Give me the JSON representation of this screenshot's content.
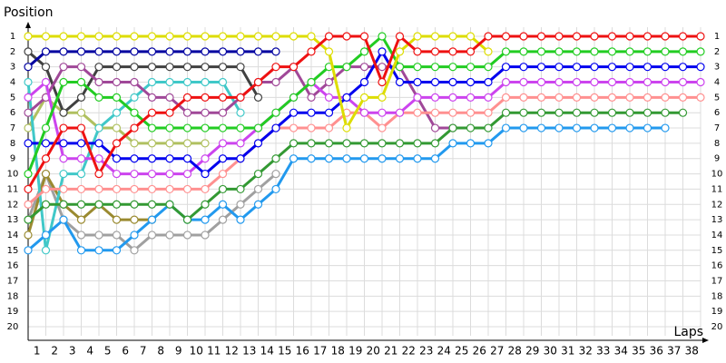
{
  "chart_data": {
    "type": "line",
    "y_label": "Position",
    "x_label": "Laps",
    "x": [
      0,
      1,
      2,
      3,
      4,
      5,
      6,
      7,
      8,
      9,
      10,
      11,
      12,
      13,
      14,
      15,
      16,
      17,
      18,
      19,
      20,
      21,
      22,
      23,
      24,
      25,
      26,
      27,
      28,
      29,
      30,
      31,
      32,
      33,
      34,
      35,
      36,
      37,
      38
    ],
    "xlim": [
      0,
      38
    ],
    "ylim": [
      1,
      20
    ],
    "y_inverted": true,
    "grid": true,
    "xticks": [
      1,
      2,
      3,
      4,
      5,
      6,
      7,
      8,
      9,
      10,
      11,
      12,
      13,
      14,
      15,
      16,
      17,
      18,
      19,
      20,
      21,
      22,
      23,
      24,
      25,
      26,
      27,
      28,
      29,
      30,
      31,
      32,
      33,
      34,
      35,
      36,
      37,
      38
    ],
    "yticks": [
      1,
      2,
      3,
      4,
      5,
      6,
      7,
      8,
      9,
      10,
      11,
      12,
      13,
      14,
      15,
      16,
      17,
      18,
      19,
      20
    ],
    "series": [
      {
        "color": "#a0a0a0",
        "values": [
          13,
          10,
          13,
          14,
          14,
          14,
          15,
          14,
          14,
          14,
          14,
          13,
          12,
          11,
          10,
          null,
          null,
          null,
          null,
          null,
          null,
          null,
          null,
          null,
          null,
          null,
          null,
          null,
          null,
          null,
          null,
          null,
          null,
          null,
          null,
          null,
          null,
          null,
          null
        ]
      },
      {
        "color": "#9a8a30",
        "values": [
          14,
          10,
          12,
          13,
          12,
          13,
          13,
          13,
          null,
          null,
          null,
          null,
          null,
          null,
          null,
          null,
          null,
          null,
          null,
          null,
          null,
          null,
          null,
          null,
          null,
          null,
          null,
          null,
          null,
          null,
          null,
          null,
          null,
          null,
          null,
          null,
          null,
          null,
          null
        ]
      },
      {
        "color": "#b0c060",
        "values": [
          7,
          5,
          6,
          6,
          7,
          7,
          8,
          8,
          8,
          8,
          8,
          null,
          null,
          null,
          null,
          null,
          null,
          null,
          null,
          null,
          null,
          null,
          null,
          null,
          null,
          null,
          null,
          null,
          null,
          null,
          null,
          null,
          null,
          null,
          null,
          null,
          null,
          null,
          null
        ]
      },
      {
        "color": "#40c8c8",
        "values": [
          4,
          15,
          10,
          10,
          7,
          6,
          5,
          4,
          4,
          4,
          4,
          4,
          6,
          null,
          null,
          null,
          null,
          null,
          null,
          null,
          null,
          null,
          null,
          null,
          null,
          null,
          null,
          null,
          null,
          null,
          null,
          null,
          null,
          null,
          null,
          null,
          null,
          null,
          null
        ]
      },
      {
        "color": "#404040",
        "values": [
          2,
          3,
          6,
          5,
          3,
          3,
          3,
          3,
          3,
          3,
          3,
          3,
          3,
          5,
          null,
          null,
          null,
          null,
          null,
          null,
          null,
          null,
          null,
          null,
          null,
          null,
          null,
          null,
          null,
          null,
          null,
          null,
          null,
          null,
          null,
          null,
          null,
          null,
          null
        ]
      },
      {
        "color": "#0000a0",
        "values": [
          3,
          2,
          2,
          2,
          2,
          2,
          2,
          2,
          2,
          2,
          2,
          2,
          2,
          2,
          2,
          null,
          null,
          null,
          null,
          null,
          null,
          null,
          null,
          null,
          null,
          null,
          null,
          null,
          null,
          null,
          null,
          null,
          null,
          null,
          null,
          null,
          null,
          null,
          null
        ]
      },
      {
        "color": "#a04898",
        "values": [
          6,
          5,
          3,
          3,
          4,
          4,
          4,
          5,
          5,
          6,
          6,
          6,
          5,
          4,
          4,
          3,
          5,
          4,
          3,
          3,
          3,
          3,
          5,
          7,
          7,
          null,
          null,
          null,
          null,
          null,
          null,
          null,
          null,
          null,
          null,
          null,
          null,
          null,
          null
        ]
      },
      {
        "color": "#2299ee",
        "values": [
          15,
          14,
          13,
          15,
          15,
          15,
          14,
          13,
          12,
          13,
          13,
          12,
          13,
          12,
          11,
          9,
          9,
          9,
          9,
          9,
          9,
          9,
          9,
          9,
          8,
          8,
          8,
          7,
          7,
          7,
          7,
          7,
          7,
          7,
          7,
          7,
          7,
          null,
          null
        ]
      },
      {
        "color": "#339933",
        "values": [
          13,
          12,
          12,
          12,
          12,
          12,
          12,
          12,
          12,
          13,
          12,
          11,
          11,
          10,
          9,
          8,
          8,
          8,
          8,
          8,
          8,
          8,
          8,
          8,
          7,
          7,
          7,
          6,
          6,
          6,
          6,
          6,
          6,
          6,
          6,
          6,
          6,
          6,
          null
        ]
      },
      {
        "color": "#ff9090",
        "values": [
          12,
          11,
          11,
          11,
          11,
          11,
          11,
          11,
          11,
          11,
          11,
          10,
          9,
          8,
          7,
          7,
          7,
          7,
          6,
          6,
          7,
          6,
          6,
          6,
          6,
          6,
          6,
          5,
          5,
          5,
          5,
          5,
          5,
          5,
          5,
          5,
          5,
          5,
          5
        ]
      },
      {
        "color": "#cc44ee",
        "values": [
          5,
          4,
          9,
          9,
          9,
          10,
          10,
          10,
          10,
          10,
          9,
          8,
          8,
          7,
          6,
          5,
          4,
          5,
          5,
          6,
          6,
          6,
          5,
          5,
          5,
          5,
          5,
          4,
          4,
          4,
          4,
          4,
          4,
          4,
          4,
          4,
          4,
          4,
          4
        ]
      },
      {
        "color": "#0000ee",
        "values": [
          8,
          8,
          8,
          8,
          8,
          9,
          9,
          9,
          9,
          9,
          10,
          9,
          9,
          8,
          7,
          6,
          6,
          6,
          5,
          4,
          2,
          4,
          4,
          4,
          4,
          4,
          4,
          3,
          3,
          3,
          3,
          3,
          3,
          3,
          3,
          3,
          3,
          3,
          3
        ]
      },
      {
        "color": "#22cc22",
        "values": [
          10,
          7,
          4,
          4,
          5,
          5,
          6,
          7,
          7,
          7,
          7,
          7,
          7,
          7,
          6,
          5,
          4,
          3,
          3,
          2,
          1,
          3,
          3,
          3,
          3,
          3,
          3,
          2,
          2,
          2,
          2,
          2,
          2,
          2,
          2,
          2,
          2,
          2,
          2
        ]
      },
      {
        "color": "#dddd00",
        "values": [
          1,
          1,
          1,
          1,
          1,
          1,
          1,
          1,
          1,
          1,
          1,
          1,
          1,
          1,
          1,
          1,
          1,
          2,
          7,
          5,
          5,
          2,
          1,
          1,
          1,
          1,
          2,
          null,
          null,
          null,
          null,
          null,
          null,
          null,
          null,
          null,
          null,
          null,
          null
        ]
      },
      {
        "color": "#ee1111",
        "values": [
          11,
          9,
          7,
          7,
          10,
          8,
          7,
          6,
          6,
          5,
          5,
          5,
          5,
          4,
          3,
          3,
          2,
          1,
          1,
          1,
          4,
          1,
          2,
          2,
          2,
          2,
          1,
          1,
          1,
          1,
          1,
          1,
          1,
          1,
          1,
          1,
          1,
          1,
          1
        ]
      }
    ]
  }
}
